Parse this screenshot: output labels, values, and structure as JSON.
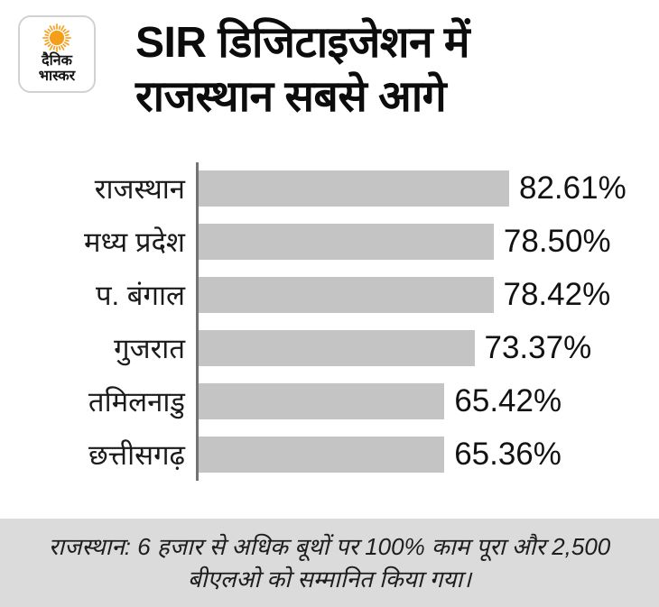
{
  "brand": {
    "logo_line1": "दैनिक",
    "logo_line2": "भास्कर",
    "sun_color": "#f59e19"
  },
  "header": {
    "title_line1": "SIR डिजिटाइजेशन में",
    "title_line2": "राजस्थान सबसे आगे"
  },
  "chart_data": {
    "type": "bar",
    "orientation": "horizontal",
    "title": "SIR डिजिटाइजेशन में राजस्थान सबसे आगे",
    "categories": [
      "राजस्थान",
      "मध्य प्रदेश",
      "प. बंगाल",
      "गुजरात",
      "तमिलनाडु",
      "छत्तीसगढ़"
    ],
    "values": [
      82.61,
      78.5,
      78.42,
      73.37,
      65.42,
      65.36
    ],
    "value_labels": [
      "82.61%",
      "78.50%",
      "78.42%",
      "73.37%",
      "65.42%",
      "65.36%"
    ],
    "xlabel": "",
    "ylabel": "",
    "xlim": [
      0,
      100
    ],
    "grid": false,
    "legend": false,
    "bar_color": "#c4c4c4",
    "axis_color": "#737373"
  },
  "footer": {
    "line1": "राजस्थान: 6 हजार से अधिक बूथों पर 100% काम पूरा और 2,500",
    "line2": "बीएलओ को सम्मानित किया गया।",
    "bg_color": "#dbdbdb"
  }
}
